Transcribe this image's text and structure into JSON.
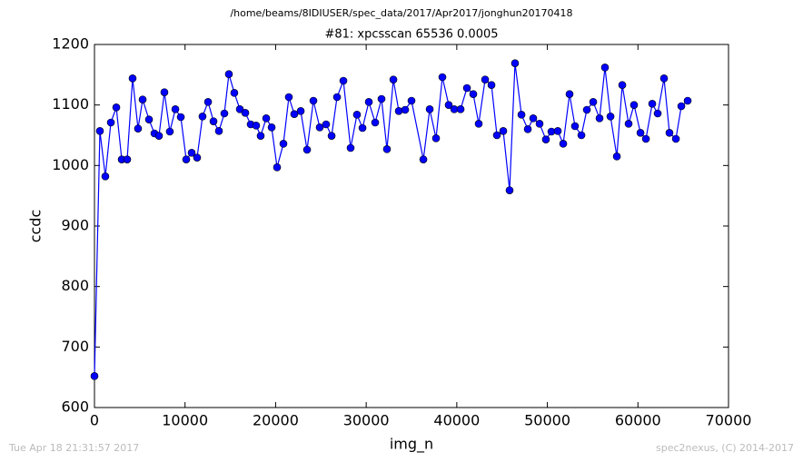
{
  "chart_data": {
    "type": "line",
    "suptitle": "/home/beams/8IDIUSER/spec_data/2017/Apr2017/jonghun20170418",
    "title": "#81: xpcsscan 65536 0.0005",
    "x_label": "img_n",
    "y_label": "ccdc",
    "footer_left": "Tue Apr 18 21:31:57 2017",
    "footer_right": "spec2nexus, (C) 2014-2017",
    "x": [
      0,
      600,
      1200,
      1810,
      2410,
      3010,
      3610,
      4210,
      4810,
      5320,
      6020,
      6620,
      7120,
      7720,
      8320,
      8930,
      9530,
      10130,
      10730,
      11330,
      11930,
      12540,
      13140,
      13740,
      14340,
      14840,
      15440,
      16050,
      16650,
      17250,
      17850,
      18350,
      18960,
      19560,
      20160,
      20860,
      21460,
      22060,
      22770,
      23470,
      24170,
      24870,
      25570,
      26180,
      26780,
      27480,
      28280,
      28980,
      29590,
      30290,
      30990,
      31690,
      32290,
      33000,
      33600,
      34300,
      35000,
      36310,
      37010,
      37710,
      38410,
      39110,
      39720,
      40420,
      41120,
      41820,
      42420,
      43130,
      43830,
      44430,
      45130,
      45830,
      46430,
      47140,
      47840,
      48440,
      49140,
      49840,
      50450,
      51150,
      51750,
      52450,
      53050,
      53760,
      54360,
      55060,
      55760,
      56360,
      56970,
      57670,
      58270,
      58970,
      59570,
      60280,
      60880,
      61580,
      62180,
      62880,
      63480,
      64190,
      64790,
      65490
    ],
    "series": [
      {
        "name": "ccdc",
        "color": "#0000ff",
        "values": [
          652,
          1057,
          982,
          1071,
          1096,
          1010,
          1010,
          1144,
          1061,
          1109,
          1076,
          1053,
          1049,
          1121,
          1056,
          1093,
          1080,
          1010,
          1021,
          1013,
          1081,
          1105,
          1073,
          1057,
          1086,
          1151,
          1120,
          1093,
          1087,
          1068,
          1066,
          1049,
          1078,
          1063,
          997,
          1036,
          1113,
          1085,
          1090,
          1026,
          1107,
          1063,
          1068,
          1049,
          1113,
          1140,
          1029,
          1084,
          1062,
          1105,
          1071,
          1110,
          1027,
          1142,
          1090,
          1092,
          1107,
          1010,
          1093,
          1045,
          1146,
          1100,
          1093,
          1093,
          1128,
          1118,
          1069,
          1142,
          1133,
          1050,
          1057,
          959,
          1169,
          1084,
          1060,
          1078,
          1069,
          1043,
          1056,
          1057,
          1036,
          1118,
          1065,
          1050,
          1092,
          1105,
          1078,
          1162,
          1081,
          1015,
          1133,
          1069,
          1100,
          1054,
          1044,
          1102,
          1086,
          1144,
          1054,
          1044,
          1098,
          1107
        ]
      }
    ],
    "xlim": [
      0,
      70000
    ],
    "xticks": [
      0,
      10000,
      20000,
      30000,
      40000,
      50000,
      60000,
      70000
    ],
    "ylim": [
      600,
      1200
    ],
    "yticks": [
      600,
      700,
      800,
      900,
      1000,
      1100,
      1200
    ],
    "grid": false
  }
}
